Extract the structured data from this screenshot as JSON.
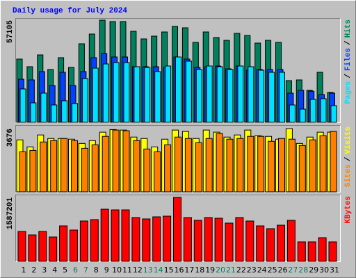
{
  "chart_data": [
    {
      "type": "bar",
      "title": "Daily usage for July 2024",
      "legend_separator": "/",
      "ylim": [
        0,
        57105
      ],
      "yticks": [
        57105
      ],
      "series": [
        {
          "name": "Hits",
          "color": "#00805c",
          "values": [
            35350,
            31080,
            37680,
            29520,
            36130,
            30690,
            43900,
            49340,
            57105,
            56330,
            56330,
            50890,
            46620,
            48170,
            50500,
            53610,
            52830,
            44680,
            50500,
            47400,
            45840,
            49730,
            48560,
            44290,
            45840,
            44680,
            23310,
            23700,
            17870,
            27970,
            16700
          ]
        },
        {
          "name": "Files",
          "color": "#0040ff",
          "values": [
            24090,
            23700,
            28360,
            20590,
            27970,
            20590,
            28360,
            36130,
            38460,
            36520,
            36520,
            31080,
            31080,
            31080,
            30690,
            36520,
            35350,
            30690,
            31080,
            31470,
            29910,
            31470,
            29140,
            29530,
            29530,
            29530,
            16320,
            17870,
            17400,
            15540,
            16320
          ]
        },
        {
          "name": "Pages",
          "color": "#00e0ff",
          "values": [
            18650,
            10880,
            16320,
            9710,
            12040,
            10490,
            24480,
            30300,
            32630,
            33410,
            33410,
            31080,
            30690,
            28360,
            31470,
            36520,
            34190,
            29530,
            31470,
            31080,
            29530,
            31470,
            31080,
            29140,
            27970,
            27970,
            9710,
            7380,
            12820,
            13210,
            9320
          ]
        }
      ]
    },
    {
      "type": "bar",
      "legend_separator": "/",
      "ylim": [
        0,
        3676
      ],
      "yticks": [
        3676
      ],
      "series": [
        {
          "name": "Visits",
          "color": "#ffff00",
          "values": [
            3019,
            2611,
            3305,
            3101,
            3101,
            3060,
            2815,
            2978,
            3468,
            3620,
            3590,
            3182,
            3101,
            2611,
            3060,
            3590,
            3509,
            3101,
            3590,
            3468,
            3182,
            3305,
            3590,
            3264,
            3223,
            3060,
            3676,
            2815,
            3182,
            3468,
            3468
          ]
        },
        {
          "name": "Sites",
          "color": "#ff8000",
          "values": [
            2326,
            2407,
            2897,
            2978,
            3101,
            2978,
            2530,
            2734,
            3223,
            3590,
            3550,
            2978,
            2489,
            2326,
            2734,
            3182,
            3101,
            2856,
            3101,
            3386,
            3060,
            3101,
            3223,
            3223,
            2938,
            3101,
            3060,
            2693,
            3019,
            3264,
            3509
          ]
        }
      ]
    },
    {
      "type": "bar",
      "ylim": [
        0,
        1587201
      ],
      "yticks": [
        1587201
      ],
      "series": [
        {
          "name": "KBytes",
          "color": "#ff0000",
          "values": [
            741840,
            655580,
            741840,
            603820,
            879850,
            776340,
            1000620,
            1035120,
            1293900,
            1276650,
            1276650,
            1086880,
            1052370,
            1104130,
            1121380,
            1587201,
            1086880,
            1017870,
            1086880,
            1069620,
            948860,
            1086880,
            1000620,
            879850,
            810840,
            897100,
            1017870,
            483060,
            483060,
            586570,
            483060
          ]
        }
      ],
      "categories": [
        "1",
        "2",
        "3",
        "4",
        "5",
        "6",
        "7",
        "8",
        "9",
        "10",
        "11",
        "12",
        "13",
        "14",
        "15",
        "16",
        "17",
        "18",
        "19",
        "20",
        "21",
        "22",
        "23",
        "24",
        "25",
        "26",
        "27",
        "28",
        "29",
        "30",
        "31"
      ],
      "category_colors": [
        "#000000",
        "#000000",
        "#000000",
        "#000000",
        "#000000",
        "#00805c",
        "#00805c",
        "#000000",
        "#000000",
        "#000000",
        "#000000",
        "#000000",
        "#00805c",
        "#00805c",
        "#000000",
        "#000000",
        "#000000",
        "#000000",
        "#000000",
        "#00805c",
        "#00805c",
        "#000000",
        "#000000",
        "#000000",
        "#000000",
        "#000000",
        "#00805c",
        "#00805c",
        "#000000",
        "#000000",
        "#000000"
      ]
    }
  ]
}
